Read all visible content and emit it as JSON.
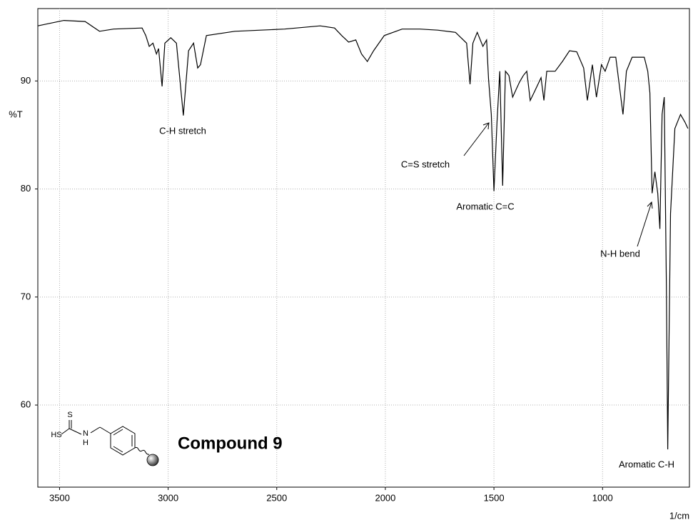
{
  "chart_data": {
    "type": "line",
    "x": [
      3600,
      3480,
      3382,
      3316,
      3251,
      3120,
      3103,
      3087,
      3070,
      3054,
      3044,
      3028,
      3015,
      2988,
      2962,
      2930,
      2906,
      2883,
      2864,
      2851,
      2824,
      2693,
      2464,
      2300,
      2234,
      2201,
      2169,
      2136,
      2110,
      2083,
      2054,
      2005,
      1923,
      1841,
      1759,
      1677,
      1626,
      1610,
      1597,
      1577,
      1551,
      1534,
      1525,
      1512,
      1500,
      1486,
      1473,
      1460,
      1447,
      1431,
      1414,
      1398,
      1382,
      1365,
      1349,
      1333,
      1316,
      1283,
      1270,
      1257,
      1218,
      1185,
      1152,
      1119,
      1087,
      1070,
      1047,
      1028,
      1005,
      988,
      965,
      939,
      906,
      890,
      864,
      808,
      792,
      782,
      772,
      759,
      746,
      736,
      726,
      716,
      706,
      700,
      687,
      667,
      641,
      621,
      607
    ],
    "values": [
      95.1,
      95.6,
      95.5,
      94.6,
      94.8,
      94.9,
      94.2,
      93.2,
      93.5,
      92.5,
      93.0,
      89.5,
      93.5,
      94.0,
      93.5,
      86.8,
      92.8,
      93.5,
      91.2,
      91.5,
      94.2,
      94.6,
      94.8,
      95.1,
      94.9,
      94.2,
      93.6,
      93.8,
      92.5,
      91.8,
      92.8,
      94.2,
      94.8,
      94.8,
      94.7,
      94.5,
      93.5,
      89.7,
      93.5,
      94.5,
      93.2,
      93.8,
      90.2,
      86.9,
      79.8,
      86.2,
      90.9,
      80.3,
      90.9,
      90.5,
      88.5,
      89.2,
      89.9,
      90.5,
      90.9,
      88.2,
      88.9,
      90.3,
      88.2,
      90.9,
      90.9,
      91.8,
      92.8,
      92.7,
      91.2,
      88.2,
      91.5,
      88.5,
      91.5,
      90.9,
      92.2,
      92.2,
      86.9,
      90.9,
      92.2,
      92.2,
      90.9,
      88.9,
      79.6,
      81.6,
      79.6,
      76.3,
      86.9,
      88.5,
      71.1,
      55.9,
      77.7,
      85.6,
      86.9,
      86.2,
      85.6
    ],
    "color": "#000000",
    "xlim": [
      3600,
      600
    ],
    "xticks": [
      3500,
      3000,
      2500,
      2000,
      1500,
      1000
    ],
    "ylim": [
      52.4,
      96.7
    ],
    "yticks": [
      60,
      70,
      80,
      90
    ],
    "grid": true,
    "y_label": "%T",
    "x_label": "1/cm",
    "annotations": [
      "C-H stretch",
      "C=S stretch",
      "Aromatic C=C",
      "N-H bend",
      "Aromatic C-H",
      "Compound 9"
    ],
    "structure_labels": [
      "S",
      "HS",
      "N",
      "H"
    ]
  }
}
